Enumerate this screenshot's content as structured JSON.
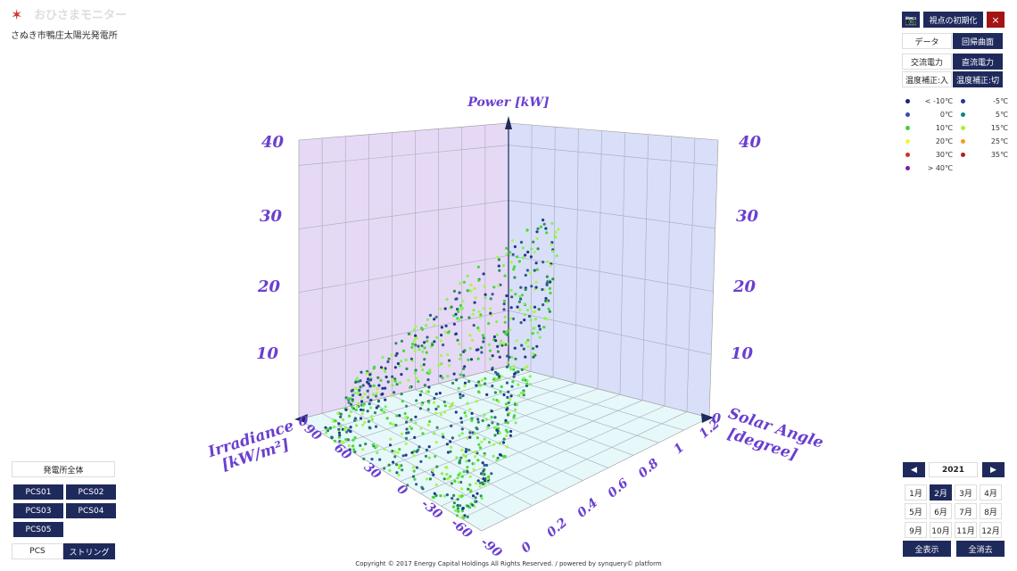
{
  "header": {
    "title": "おひさまモニター",
    "subtitle": "さぬき市鴨庄太陽光発電所"
  },
  "toolbar": {
    "reset": "視点の初期化",
    "close": "×"
  },
  "toggles": [
    [
      "データ",
      "回帰曲面"
    ],
    [
      "交流電力",
      "直流電力"
    ],
    [
      "温度補正:入",
      "温度補正:切"
    ]
  ],
  "legend": [
    {
      "label": "< -10℃",
      "color": "#1a237e"
    },
    {
      "label": "-5℃",
      "color": "#283593"
    },
    {
      "label": "0℃",
      "color": "#3949ab"
    },
    {
      "label": "5℃",
      "color": "#00897b"
    },
    {
      "label": "10℃",
      "color": "#43d13f"
    },
    {
      "label": "15℃",
      "color": "#a6f03c"
    },
    {
      "label": "20℃",
      "color": "#f5f542"
    },
    {
      "label": "25℃",
      "color": "#f59a23"
    },
    {
      "label": "30℃",
      "color": "#d32f2f"
    },
    {
      "label": "35℃",
      "color": "#b71c1c"
    },
    {
      "label": "> 40℃",
      "color": "#7b1fa2"
    }
  ],
  "plot": {
    "z_label": "Power [kW]",
    "x_label": [
      "Irradiance",
      "[kW/m²]"
    ],
    "y_label": [
      "Solar Angle",
      "[degree]"
    ],
    "z_ticks_left": [
      "40",
      "30",
      "20",
      "10"
    ],
    "z_ticks_right": [
      "40",
      "30",
      "20",
      "10"
    ],
    "origin_left": "0",
    "origin_right": "0",
    "angle_ticks": [
      "90",
      "60",
      "30",
      "0",
      "-30",
      "-60",
      "-90"
    ],
    "irradiance_ticks": [
      "0",
      "0.2",
      "0.4",
      "0.6",
      "0.8",
      "1",
      "1.2"
    ]
  },
  "left_panel": {
    "all": "発電所全体",
    "pcs": [
      "PCS01",
      "PCS02",
      "PCS03",
      "PCS04",
      "PCS05"
    ],
    "modes": [
      "PCS",
      "ストリング"
    ]
  },
  "calendar": {
    "prev": "◀",
    "year": "2021",
    "next": "▶",
    "months": [
      "1月",
      "2月",
      "3月",
      "4月",
      "5月",
      "6月",
      "7月",
      "8月",
      "9月",
      "10月",
      "11月",
      "12月"
    ],
    "show_all": "全表示",
    "clear_all": "全消去"
  },
  "footer": "Copyright © 2017 Energy Capital Holdings All Rights Reserved. / powered by synquery© platform"
}
